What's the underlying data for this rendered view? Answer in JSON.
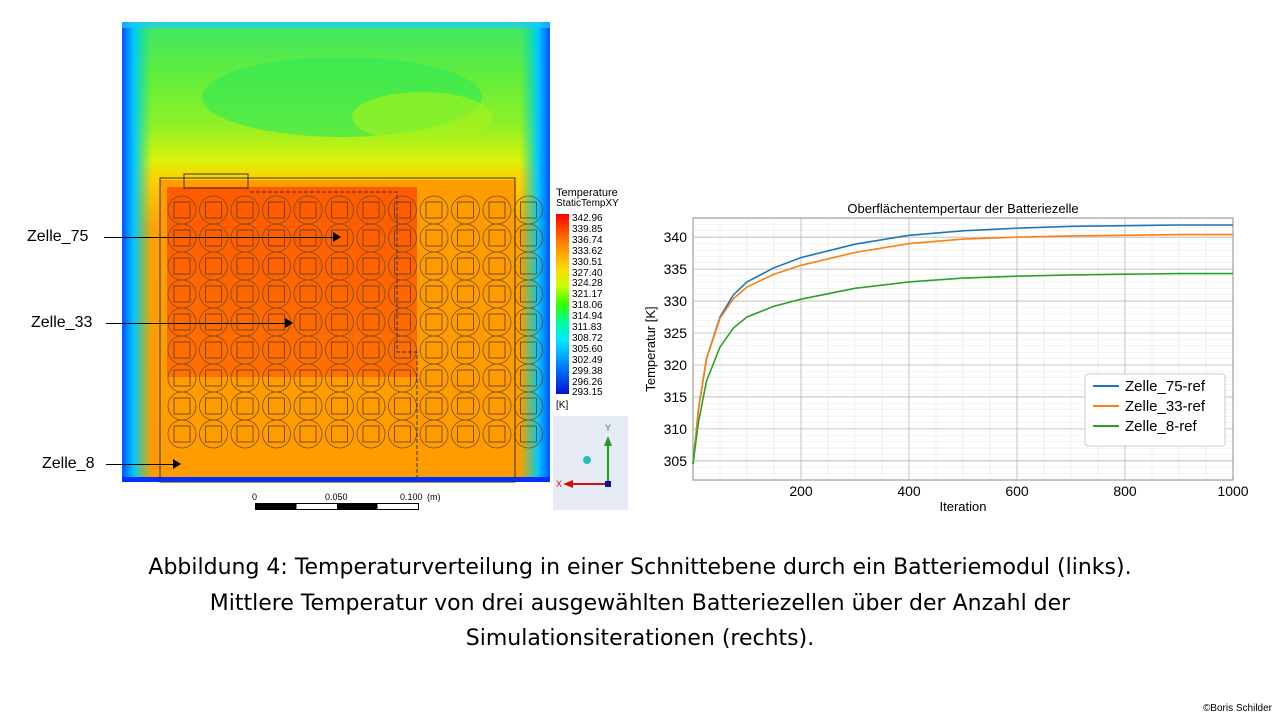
{
  "simulation": {
    "cell_labels": [
      "Zelle_75",
      "Zelle_33",
      "Zelle_8"
    ],
    "legend": {
      "title": "Temperature",
      "subtitle": "StaticTempXY",
      "values": [
        "342.96",
        "339.85",
        "336.74",
        "333.62",
        "330.51",
        "327.40",
        "324.28",
        "321.17",
        "318.06",
        "314.94",
        "311.83",
        "308.72",
        "305.60",
        "302.49",
        "299.38",
        "296.26",
        "293.15"
      ],
      "unit": "[K]"
    },
    "scale": {
      "labels": [
        "0",
        "0.050",
        "0.100"
      ],
      "unit": "(m)"
    },
    "axis_triad": {
      "y": "Y",
      "x": "X"
    }
  },
  "chart_data": {
    "type": "line",
    "title": "Oberflächentempertaur der Batteriezelle",
    "xlabel": "Iteration",
    "ylabel": "Temperatur [K]",
    "xlim": [
      0,
      1000
    ],
    "ylim": [
      302,
      343
    ],
    "xticks": [
      200,
      400,
      600,
      800,
      1000
    ],
    "yticks": [
      305,
      310,
      315,
      320,
      325,
      330,
      335,
      340
    ],
    "grid": true,
    "legend_position": "bottom-right",
    "x": [
      0,
      10,
      25,
      50,
      75,
      100,
      150,
      200,
      300,
      400,
      500,
      600,
      700,
      800,
      900,
      1000
    ],
    "series": [
      {
        "name": "Zelle_75-ref",
        "color": "#1f77b4",
        "values": [
          304.5,
          313,
          321,
          327.5,
          331,
          333,
          335.2,
          336.8,
          338.9,
          340.3,
          341.0,
          341.4,
          341.7,
          341.8,
          341.9,
          341.9
        ]
      },
      {
        "name": "Zelle_33-ref",
        "color": "#ff7f0e",
        "values": [
          304.5,
          313,
          321,
          327.3,
          330.4,
          332.2,
          334.2,
          335.6,
          337.6,
          339.0,
          339.7,
          340.0,
          340.2,
          340.3,
          340.4,
          340.4
        ]
      },
      {
        "name": "Zelle_8-ref",
        "color": "#2ca02c",
        "values": [
          304.5,
          311,
          317.5,
          322.8,
          325.8,
          327.5,
          329.2,
          330.3,
          332.0,
          333.0,
          333.6,
          333.9,
          334.1,
          334.2,
          334.3,
          334.3
        ]
      }
    ]
  },
  "caption": {
    "line1": "Abbildung 4: Temperaturverteilung  in einer Schnittebene durch ein Batteriemodul (links).",
    "line2": "Mittlere Temperatur  von drei ausgewählten Batteriezellen über der Anzahl der",
    "line3": "Simulationsiterationen (rechts)."
  },
  "copyright": "©Boris Schilder"
}
